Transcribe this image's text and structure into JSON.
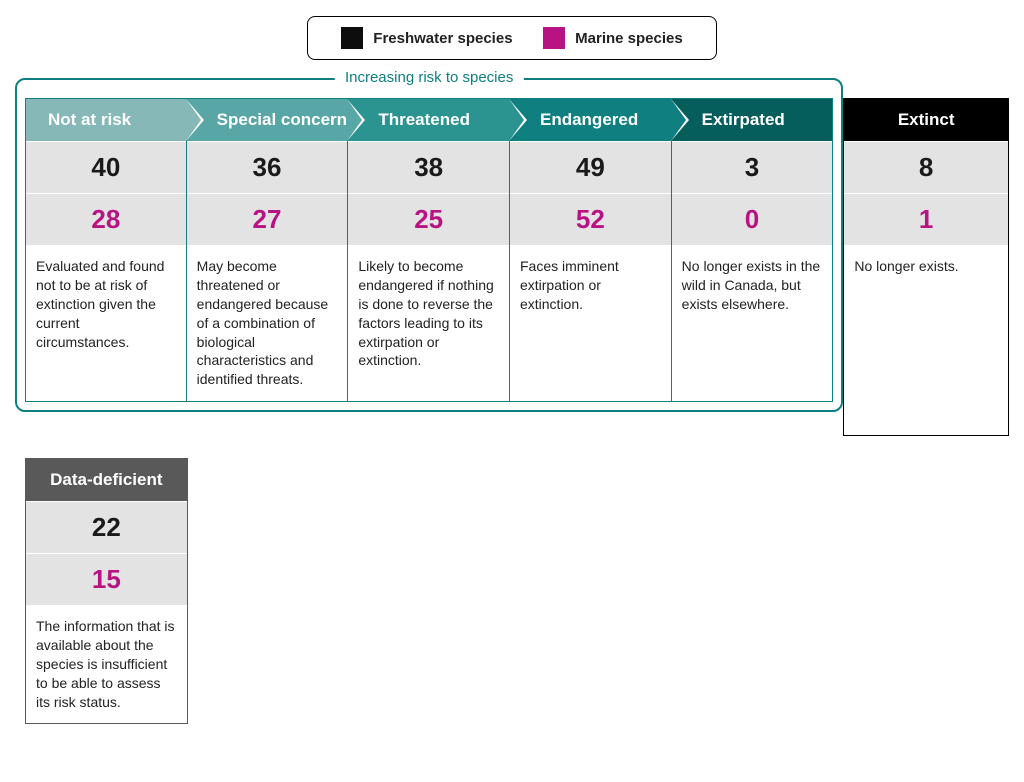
{
  "colors": {
    "freshwater": "#0d0d0d",
    "marine": "#b71382",
    "teal_border": "#0f7f80",
    "row_bg": "#e3e3e3",
    "headers": [
      "#86b8b8",
      "#58a7a6",
      "#2b9491",
      "#0f7f80",
      "#065e5c",
      "#000000"
    ],
    "data_def_header": "#595959",
    "data_def_border": "#595959"
  },
  "legend": {
    "fresh": "Freshwater species",
    "marine": "Marine species"
  },
  "risk_label": "Increasing risk to species",
  "categories": [
    {
      "name": "Not at risk",
      "fresh": "40",
      "marine": "28",
      "desc": "Evaluated and found not to be at risk of extinction given the current circumstances."
    },
    {
      "name": "Special concern",
      "fresh": "36",
      "marine": "27",
      "desc": "May become threatened or endangered because of a combination of biological characteristics and identified threats."
    },
    {
      "name": "Threatened",
      "fresh": "38",
      "marine": "25",
      "desc": "Likely to become endangered if nothing is done to reverse the factors leading to its extirpation or extinction."
    },
    {
      "name": "Endangered",
      "fresh": "49",
      "marine": "52",
      "desc": "Faces imminent extirpation or extinction."
    },
    {
      "name": "Extirpated",
      "fresh": "3",
      "marine": "0",
      "desc": "No longer exists in the wild in Canada, but exists elsewhere."
    },
    {
      "name": "Extinct",
      "fresh": "8",
      "marine": "1",
      "desc": "No longer exists."
    }
  ],
  "data_deficient": {
    "name": "Data-deficient",
    "fresh": "22",
    "marine": "15",
    "desc": "The information that is available about the species is insufficient to be able to assess its risk status."
  }
}
